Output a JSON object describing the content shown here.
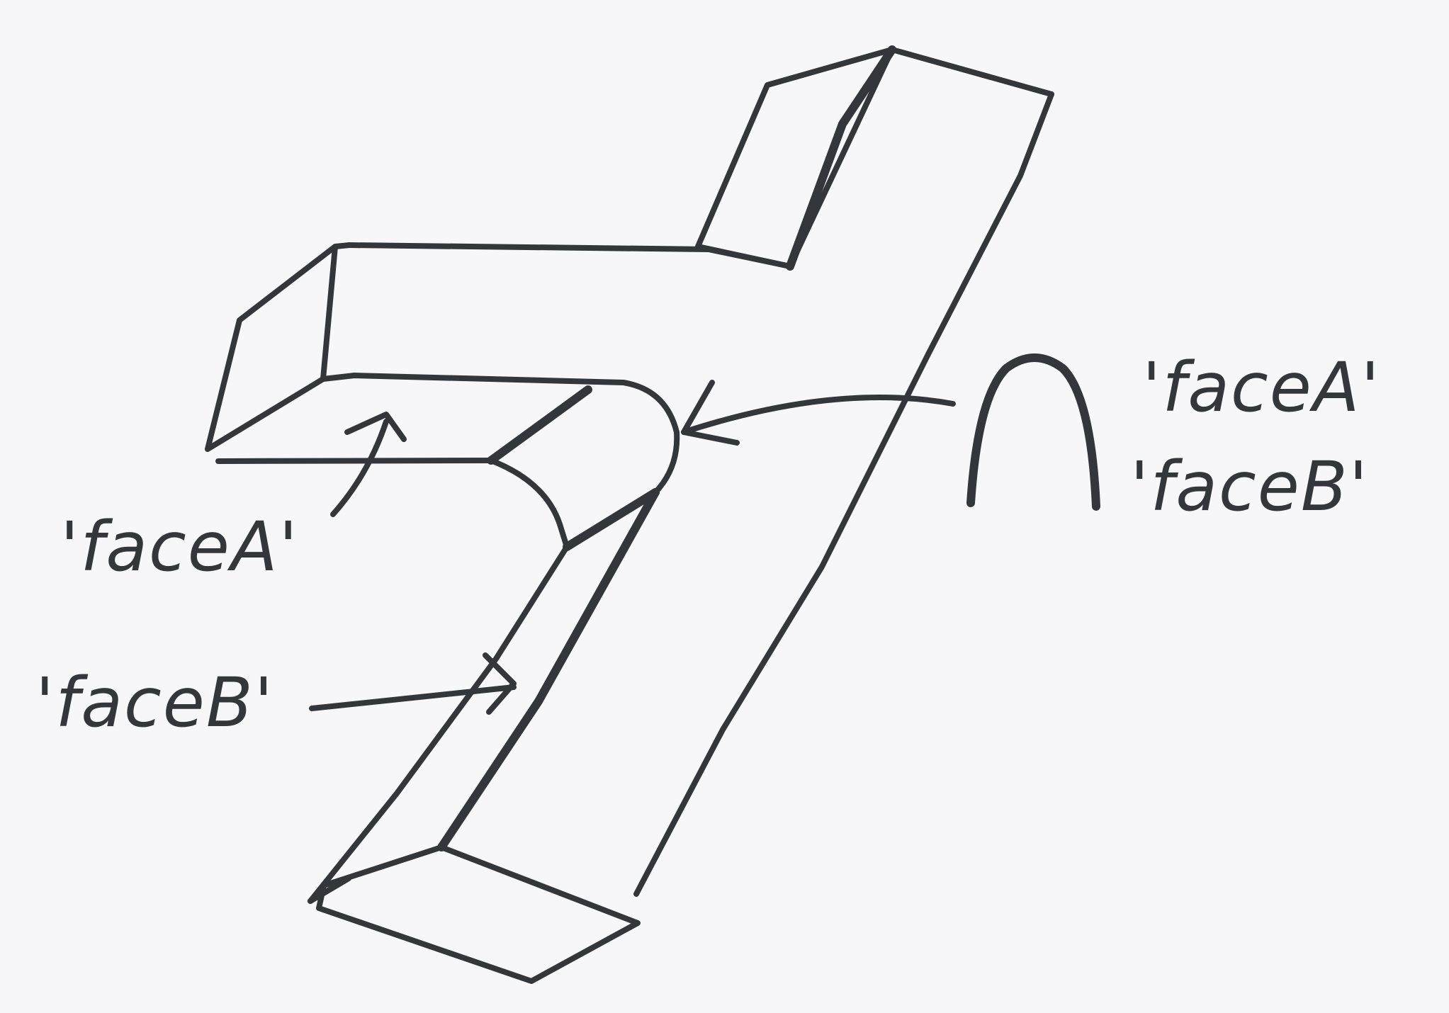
{
  "diagram": {
    "labels": {
      "left_face_a": "'faceA'",
      "left_face_b": "'faceB'",
      "right_face_a": "'faceA'",
      "right_face_b": "'faceB'"
    },
    "symbols": {
      "intersection_glyph": "intersection-symbol"
    },
    "colors": {
      "ink": "#33363b",
      "paper": "#f7f7f9"
    }
  }
}
